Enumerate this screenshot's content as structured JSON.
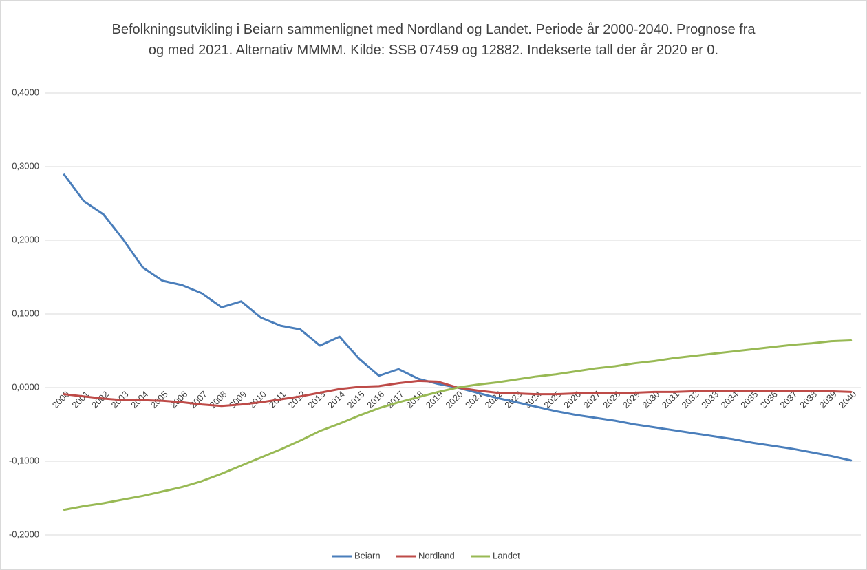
{
  "chart_data": {
    "type": "line",
    "title": "Befolkningsutvikling i Beiarn sammenlignet med Nordland og Landet.   Periode år 2000-2040. Prognose fra og med 2021.  Alternativ MMMM.  Kilde: SSB 07459 og 12882.  Indekserte tall der år 2020 er 0.",
    "categories": [
      "2000",
      "2001",
      "2002",
      "2003",
      "2004",
      "2005",
      "2006",
      "2007",
      "2008",
      "2009",
      "2010",
      "2011",
      "2012",
      "2013",
      "2014",
      "2015",
      "2016",
      "2017",
      "2018",
      "2019",
      "2020",
      "2021",
      "2022",
      "2023",
      "2024",
      "2025",
      "2026",
      "2027",
      "2028",
      "2029",
      "2030",
      "2031",
      "2032",
      "2033",
      "2034",
      "2035",
      "2036",
      "2037",
      "2038",
      "2039",
      "2040"
    ],
    "series": [
      {
        "name": "Beiarn",
        "color": "#4a7ebb",
        "values": [
          0.289,
          0.253,
          0.235,
          0.201,
          0.163,
          0.145,
          0.139,
          0.128,
          0.109,
          0.117,
          0.095,
          0.084,
          0.079,
          0.057,
          0.069,
          0.039,
          0.016,
          0.025,
          0.012,
          0.005,
          0,
          -0.007,
          -0.014,
          -0.02,
          -0.026,
          -0.032,
          -0.037,
          -0.041,
          -0.045,
          -0.05,
          -0.054,
          -0.058,
          -0.062,
          -0.066,
          -0.07,
          -0.075,
          -0.079,
          -0.083,
          -0.088,
          -0.093,
          -0.099
        ]
      },
      {
        "name": "Nordland",
        "color": "#be4b48",
        "values": [
          -0.009,
          -0.012,
          -0.015,
          -0.017,
          -0.017,
          -0.018,
          -0.02,
          -0.023,
          -0.025,
          -0.023,
          -0.02,
          -0.016,
          -0.012,
          -0.007,
          -0.002,
          0.001,
          0.002,
          0.006,
          0.009,
          0.008,
          0,
          -0.004,
          -0.007,
          -0.008,
          -0.009,
          -0.009,
          -0.008,
          -0.008,
          -0.007,
          -0.007,
          -0.006,
          -0.006,
          -0.005,
          -0.005,
          -0.005,
          -0.005,
          -0.005,
          -0.005,
          -0.005,
          -0.005,
          -0.006
        ]
      },
      {
        "name": "Landet",
        "color": "#98b954",
        "values": [
          -0.166,
          -0.161,
          -0.157,
          -0.152,
          -0.147,
          -0.141,
          -0.135,
          -0.127,
          -0.117,
          -0.106,
          -0.095,
          -0.084,
          -0.072,
          -0.059,
          -0.049,
          -0.038,
          -0.028,
          -0.02,
          -0.013,
          -0.006,
          0,
          0.004,
          0.007,
          0.011,
          0.015,
          0.018,
          0.022,
          0.026,
          0.029,
          0.033,
          0.036,
          0.04,
          0.043,
          0.046,
          0.049,
          0.052,
          0.055,
          0.058,
          0.06,
          0.063,
          0.064
        ]
      }
    ],
    "ylim": [
      -0.2,
      0.4
    ],
    "yticks": [
      {
        "value": -0.2,
        "label": "-0,2000"
      },
      {
        "value": -0.1,
        "label": "-0,1000"
      },
      {
        "value": 0,
        "label": "0,0000"
      },
      {
        "value": 0.1,
        "label": "0,1000"
      },
      {
        "value": 0.2,
        "label": "0,2000"
      },
      {
        "value": 0.3,
        "label": "0,3000"
      },
      {
        "value": 0.4,
        "label": "0,4000"
      }
    ],
    "grid": true,
    "legend": "bottom"
  }
}
